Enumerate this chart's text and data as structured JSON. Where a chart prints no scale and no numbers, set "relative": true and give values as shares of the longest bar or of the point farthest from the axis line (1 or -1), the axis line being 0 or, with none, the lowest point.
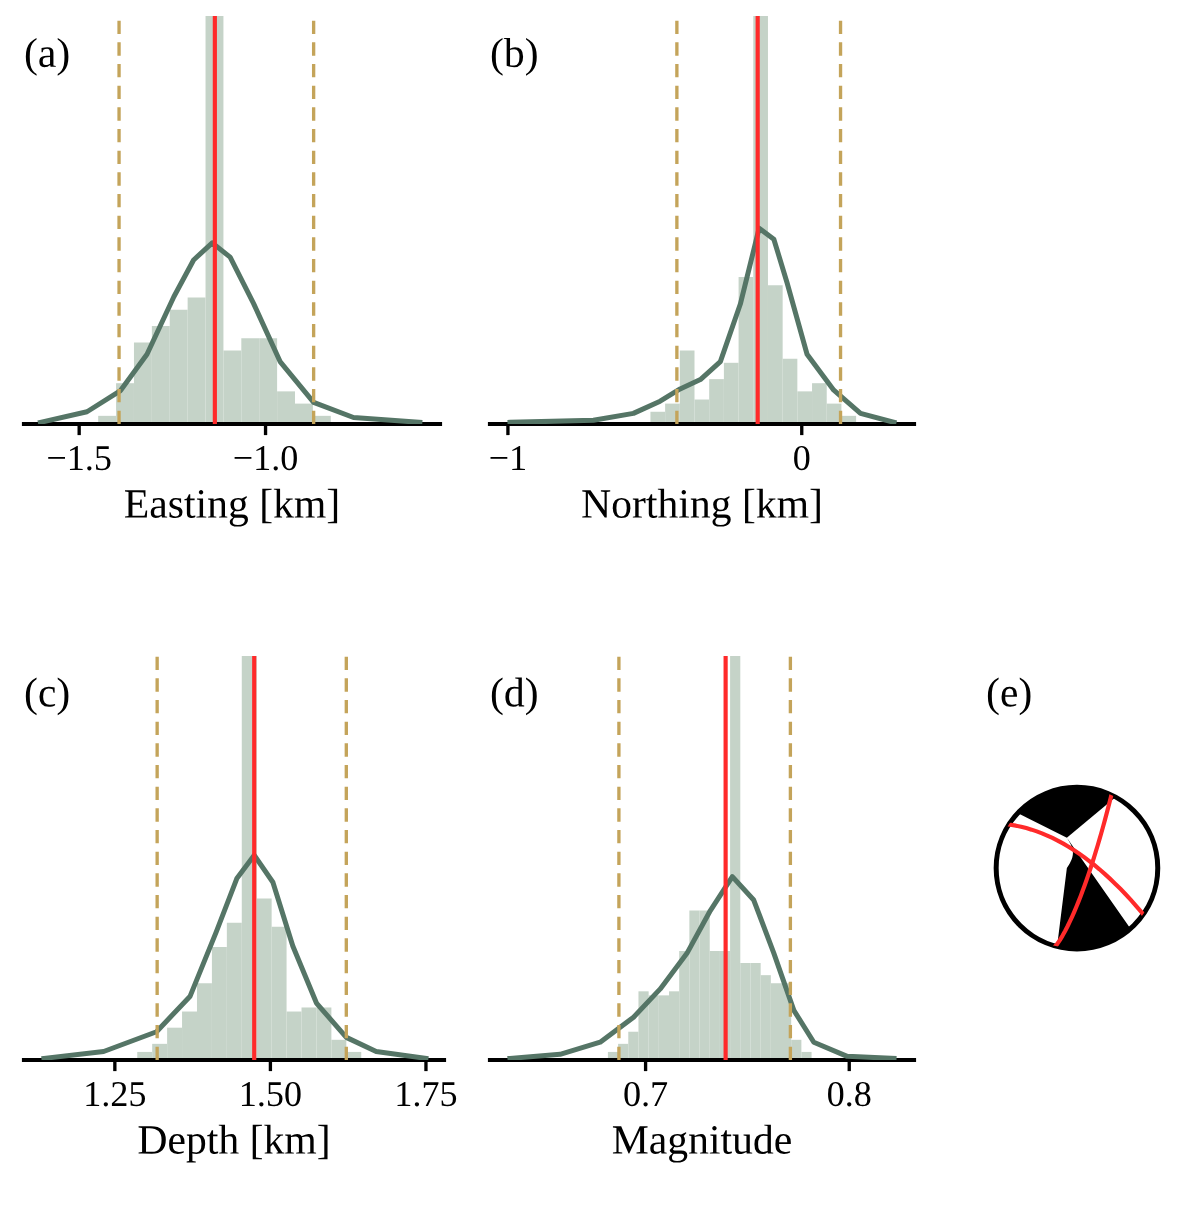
{
  "chart_data": [
    {
      "type": "histogram",
      "title": "(a)",
      "xlabel": "Easting [km]",
      "relative": true,
      "color": "#c5d3c8",
      "bins": [
        -1.449,
        -1.401,
        -1.353,
        -1.305,
        -1.257,
        -1.209,
        -1.161,
        -1.113,
        -1.065,
        -1.017,
        -0.969,
        -0.921,
        -0.873,
        -0.825
      ],
      "values": [
        0.02,
        0.1,
        0.2,
        0.24,
        0.28,
        0.31,
        1.0,
        0.18,
        0.21,
        0.21,
        0.08,
        0.05,
        0.02
      ],
      "series": [
        {
          "type": "line",
          "color": "#557566",
          "x": [
            -1.604,
            -1.479,
            -1.389,
            -1.318,
            -1.246,
            -1.193,
            -1.143,
            -1.095,
            -1.032,
            -0.961,
            -0.871,
            -0.764,
            -0.586
          ],
          "values": [
            0.004,
            0.03,
            0.082,
            0.171,
            0.312,
            0.402,
            0.444,
            0.409,
            0.295,
            0.153,
            0.053,
            0.016,
            0.004
          ]
        }
      ],
      "ref_lines": [
        {
          "axis": "x",
          "value": -1.136,
          "color": "#ff2a2a",
          "line_style": "solid"
        },
        {
          "axis": "x",
          "value": -1.393,
          "color": "#c4a45a",
          "line_style": "dashed"
        },
        {
          "axis": "x",
          "value": -0.871,
          "color": "#c4a45a",
          "line_style": "dashed"
        }
      ],
      "xlim": [
        -1.648,
        -0.532
      ],
      "xticks": [
        {
          "value": -1.5,
          "label": "−1.5"
        },
        {
          "value": -1.0,
          "label": "−1.0"
        }
      ]
    },
    {
      "type": "histogram",
      "title": "(b)",
      "xlabel": "Northing [km]",
      "relative": true,
      "color": "#c5d3c8",
      "bins": [
        -0.565,
        -0.515,
        -0.465,
        -0.415,
        -0.365,
        -0.315,
        -0.265,
        -0.215,
        -0.165,
        -0.115,
        -0.065,
        -0.015,
        0.035,
        0.085,
        0.135,
        0.185,
        0.235
      ],
      "values": [
        null,
        0.03,
        0.05,
        0.18,
        0.06,
        0.11,
        0.15,
        0.36,
        1.0,
        0.34,
        0.16,
        0.08,
        0.1,
        0.05,
        0.02,
        null
      ],
      "series": [
        {
          "type": "line",
          "color": "#557566",
          "x": [
            -0.993,
            -0.709,
            -0.573,
            -0.482,
            -0.414,
            -0.345,
            -0.277,
            -0.209,
            -0.145,
            -0.095,
            -0.05,
            0.018,
            0.109,
            0.2,
            0.314
          ],
          "values": [
            0.004,
            0.009,
            0.026,
            0.056,
            0.086,
            0.109,
            0.153,
            0.294,
            0.48,
            0.453,
            0.346,
            0.171,
            0.083,
            0.026,
            0.004
          ]
        }
      ],
      "ref_lines": [
        {
          "axis": "x",
          "value": -0.15,
          "color": "#ff2a2a",
          "line_style": "solid"
        },
        {
          "axis": "x",
          "value": -0.425,
          "color": "#c4a45a",
          "line_style": "dashed"
        },
        {
          "axis": "x",
          "value": 0.132,
          "color": "#c4a45a",
          "line_style": "dashed"
        }
      ],
      "xlim": [
        -1.061,
        0.382
      ],
      "xticks": [
        {
          "value": -1,
          "label": "−1"
        },
        0
      ]
    },
    {
      "type": "histogram",
      "title": "(c)",
      "xlabel": "Depth [km]",
      "relative": true,
      "color": "#c5d3c8",
      "bins": [
        1.286,
        1.31,
        1.334,
        1.358,
        1.382,
        1.406,
        1.43,
        1.454,
        1.478,
        1.502,
        1.526,
        1.55,
        1.574,
        1.598,
        1.622,
        1.646
      ],
      "values": [
        0.02,
        0.04,
        0.08,
        0.12,
        0.19,
        0.28,
        0.34,
        1.0,
        0.4,
        0.33,
        0.12,
        0.13,
        0.13,
        0.05,
        0.02
      ],
      "series": [
        {
          "type": "line",
          "color": "#557566",
          "x": [
            1.136,
            1.232,
            1.317,
            1.371,
            1.413,
            1.446,
            1.474,
            1.504,
            1.536,
            1.574,
            1.622,
            1.67,
            1.75
          ],
          "values": [
            0.004,
            0.021,
            0.07,
            0.158,
            0.317,
            0.449,
            0.507,
            0.44,
            0.282,
            0.141,
            0.056,
            0.021,
            0.004
          ]
        }
      ],
      "ref_lines": [
        {
          "axis": "x",
          "value": 1.474,
          "color": "#ff2a2a",
          "line_style": "solid"
        },
        {
          "axis": "x",
          "value": 1.318,
          "color": "#c4a45a",
          "line_style": "dashed"
        },
        {
          "axis": "x",
          "value": 1.622,
          "color": "#c4a45a",
          "line_style": "dashed"
        }
      ],
      "xlim": [
        1.104,
        1.779
      ],
      "xticks": [
        {
          "value": 1.25,
          "label": "1.25"
        },
        {
          "value": 1.5,
          "label": "1.50"
        },
        {
          "value": 1.75,
          "label": "1.75"
        }
      ]
    },
    {
      "type": "histogram",
      "title": "(d)",
      "xlabel": "Magnitude",
      "relative": true,
      "color": "#c5d3c8",
      "bins": [
        0.6815,
        0.6865,
        0.6915,
        0.6965,
        0.7015,
        0.7065,
        0.7115,
        0.7165,
        0.7215,
        0.7265,
        0.7315,
        0.7365,
        0.7415,
        0.7465,
        0.7515,
        0.7565,
        0.7615,
        0.7665,
        0.7715,
        0.7765,
        0.7815
      ],
      "values": [
        0.02,
        0.04,
        0.07,
        0.17,
        0.16,
        0.16,
        0.17,
        0.27,
        0.37,
        0.37,
        0.27,
        0.27,
        1.0,
        0.24,
        0.24,
        0.21,
        0.19,
        0.19,
        0.05,
        0.02
      ],
      "series": [
        {
          "type": "line",
          "color": "#557566",
          "x": [
            0.6334,
            0.658,
            0.6777,
            0.6941,
            0.7072,
            0.7203,
            0.7318,
            0.7426,
            0.7531,
            0.763,
            0.7728,
            0.7826,
            0.799,
            0.822
          ],
          "values": [
            0.004,
            0.014,
            0.044,
            0.106,
            0.176,
            0.264,
            0.37,
            0.454,
            0.396,
            0.264,
            0.123,
            0.044,
            0.009,
            0.004
          ]
        }
      ],
      "ref_lines": [
        {
          "axis": "x",
          "value": 0.7393,
          "color": "#ff2a2a",
          "line_style": "solid"
        },
        {
          "axis": "x",
          "value": 0.6869,
          "color": "#c4a45a",
          "line_style": "dashed"
        },
        {
          "axis": "x",
          "value": 0.7711,
          "color": "#c4a45a",
          "line_style": "dashed"
        }
      ],
      "xlim": [
        0.6236,
        0.8318
      ],
      "xticks": [
        0.7,
        0.8
      ]
    },
    {
      "type": "other",
      "title": "(e)"
    }
  ]
}
